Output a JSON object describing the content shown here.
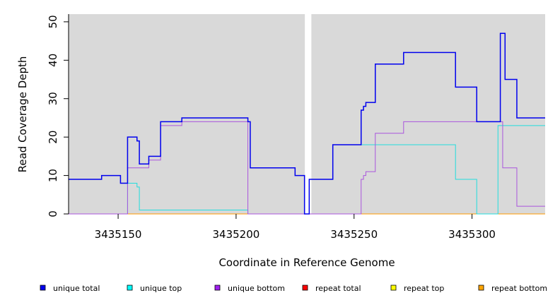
{
  "chart_data": {
    "type": "line",
    "xlabel": "Coordinate in Reference Genome",
    "ylabel": "Read Coverage Depth",
    "xlim": [
      3435129,
      3435331
    ],
    "ylim": [
      0,
      52
    ],
    "xticks": [
      3435150,
      3435200,
      3435250,
      3435300
    ],
    "yticks": [
      0,
      10,
      20,
      30,
      40,
      50
    ],
    "panel_background": "#d9d9d9",
    "gap": [
      3435229,
      3435231
    ],
    "series": [
      {
        "name": "unique total",
        "color": "#0000ee",
        "points": [
          [
            3435129,
            9
          ],
          [
            3435143,
            9
          ],
          [
            3435143,
            10
          ],
          [
            3435151,
            10
          ],
          [
            3435151,
            8
          ],
          [
            3435154,
            8
          ],
          [
            3435154,
            20
          ],
          [
            3435158,
            20
          ],
          [
            3435158,
            19
          ],
          [
            3435159,
            19
          ],
          [
            3435159,
            13
          ],
          [
            3435163,
            13
          ],
          [
            3435163,
            15
          ],
          [
            3435168,
            15
          ],
          [
            3435168,
            24
          ],
          [
            3435177,
            24
          ],
          [
            3435177,
            25
          ],
          [
            3435205,
            25
          ],
          [
            3435205,
            24
          ],
          [
            3435206,
            24
          ],
          [
            3435206,
            12
          ],
          [
            3435225,
            12
          ],
          [
            3435225,
            10
          ],
          [
            3435229,
            10
          ],
          [
            3435229,
            0
          ],
          [
            3435231,
            0
          ],
          [
            3435231,
            9
          ],
          [
            3435241,
            9
          ],
          [
            3435241,
            18
          ],
          [
            3435253,
            18
          ],
          [
            3435253,
            27
          ],
          [
            3435254,
            27
          ],
          [
            3435254,
            28
          ],
          [
            3435255,
            28
          ],
          [
            3435255,
            29
          ],
          [
            3435259,
            29
          ],
          [
            3435259,
            39
          ],
          [
            3435271,
            39
          ],
          [
            3435271,
            42
          ],
          [
            3435293,
            42
          ],
          [
            3435293,
            33
          ],
          [
            3435302,
            33
          ],
          [
            3435302,
            24
          ],
          [
            3435312,
            24
          ],
          [
            3435312,
            47
          ],
          [
            3435314,
            47
          ],
          [
            3435314,
            35
          ],
          [
            3435319,
            35
          ],
          [
            3435319,
            25
          ],
          [
            3435331,
            25
          ]
        ]
      },
      {
        "name": "unique top",
        "color": "#22dddd",
        "points": [
          [
            3435129,
            0
          ],
          [
            3435154,
            0
          ],
          [
            3435154,
            8
          ],
          [
            3435158,
            8
          ],
          [
            3435158,
            7
          ],
          [
            3435159,
            7
          ],
          [
            3435159,
            1
          ],
          [
            3435205,
            1
          ],
          [
            3435205,
            0
          ],
          [
            3435231,
            0
          ],
          [
            3435231,
            9
          ],
          [
            3435241,
            9
          ],
          [
            3435241,
            18
          ],
          [
            3435293,
            18
          ],
          [
            3435293,
            9
          ],
          [
            3435302,
            9
          ],
          [
            3435302,
            0
          ],
          [
            3435311,
            0
          ],
          [
            3435311,
            23
          ],
          [
            3435331,
            23
          ]
        ]
      },
      {
        "name": "unique bottom",
        "color": "#aa55dd",
        "points": [
          [
            3435129,
            0
          ],
          [
            3435154,
            0
          ],
          [
            3435154,
            12
          ],
          [
            3435163,
            12
          ],
          [
            3435163,
            14
          ],
          [
            3435168,
            14
          ],
          [
            3435168,
            23
          ],
          [
            3435177,
            23
          ],
          [
            3435177,
            24
          ],
          [
            3435205,
            24
          ],
          [
            3435205,
            0
          ],
          [
            3435253,
            0
          ],
          [
            3435253,
            9
          ],
          [
            3435254,
            9
          ],
          [
            3435254,
            10
          ],
          [
            3435255,
            10
          ],
          [
            3435255,
            11
          ],
          [
            3435259,
            11
          ],
          [
            3435259,
            21
          ],
          [
            3435271,
            21
          ],
          [
            3435271,
            24
          ],
          [
            3435313,
            24
          ],
          [
            3435313,
            12
          ],
          [
            3435319,
            12
          ],
          [
            3435319,
            2
          ],
          [
            3435331,
            2
          ]
        ]
      },
      {
        "name": "repeat total",
        "color": "#ff0000",
        "points": []
      },
      {
        "name": "repeat top",
        "color": "#ffff00",
        "points": []
      },
      {
        "name": "repeat bottom",
        "color": "#ff9900",
        "points": [
          [
            3435129,
            0
          ],
          [
            3435229,
            0
          ],
          [
            3435231,
            0
          ],
          [
            3435331,
            0
          ]
        ]
      }
    ],
    "legend": {
      "placement": "bottom",
      "items": [
        {
          "label": "unique total",
          "color": "#0000ee"
        },
        {
          "label": "unique top",
          "color": "#00ffff"
        },
        {
          "label": "unique bottom",
          "color": "#a020f0"
        },
        {
          "label": "repeat total",
          "color": "#ff0000"
        },
        {
          "label": "repeat top",
          "color": "#ffff00"
        },
        {
          "label": "repeat bottom",
          "color": "#ffa500"
        }
      ]
    }
  }
}
